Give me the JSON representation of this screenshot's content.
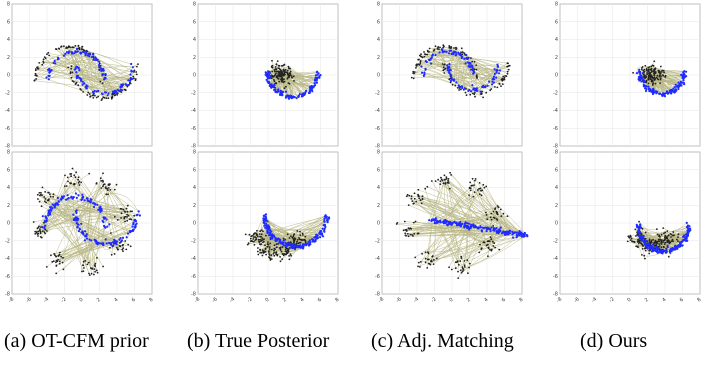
{
  "figure": {
    "captions": [
      {
        "label": "(a) OT-CFM prior"
      },
      {
        "label": "(b) True Posterior"
      },
      {
        "label": "(c) Adj. Matching"
      },
      {
        "label": "(d) Ours"
      }
    ]
  },
  "chart_data": [
    {
      "type": "scatter",
      "panel": "a-top",
      "xlim": [
        -8,
        8
      ],
      "ylim": [
        -8,
        8
      ],
      "grid": true,
      "xticks": [
        -8,
        -6,
        -4,
        -2,
        0,
        2,
        4,
        6,
        8
      ],
      "yticks": [
        -8,
        -6,
        -4,
        -2,
        0,
        2,
        4,
        6,
        8
      ],
      "series": [
        {
          "role": "source",
          "color": "#222222",
          "style": "moons",
          "values": [
            {
              "x_center": 0.5,
              "y_center": 0.3,
              "spread": 3.0
            }
          ]
        },
        {
          "role": "target",
          "color": "#1f2bff",
          "style": "two-moons",
          "values": [
            {
              "x_center": 1.0,
              "y_center": 0.25,
              "spread": 2.0
            }
          ]
        }
      ]
    },
    {
      "type": "scatter",
      "panel": "b-top",
      "xlim": [
        -8,
        8
      ],
      "ylim": [
        -8,
        8
      ],
      "grid": true,
      "xticks": [
        -8,
        -6,
        -4,
        -2,
        0,
        2,
        4,
        6,
        8
      ],
      "yticks": [
        -8,
        -6,
        -4,
        -2,
        0,
        2,
        4,
        6,
        8
      ],
      "series": [
        {
          "role": "source",
          "color": "#222222",
          "style": "blob",
          "values": [
            {
              "x_center": 1.5,
              "y_center": 0.0,
              "spread": 1.4
            }
          ]
        },
        {
          "role": "target",
          "color": "#1f2bff",
          "style": "lower-moon",
          "values": [
            {
              "x_center": 2.0,
              "y_center": -0.3,
              "spread": 1.8
            }
          ]
        }
      ]
    },
    {
      "type": "scatter",
      "panel": "c-top",
      "xlim": [
        -8,
        8
      ],
      "ylim": [
        -8,
        8
      ],
      "grid": true,
      "xticks": [
        -8,
        -6,
        -4,
        -2,
        0,
        2,
        4,
        6,
        8
      ],
      "yticks": [
        -8,
        -6,
        -4,
        -2,
        0,
        2,
        4,
        6,
        8
      ],
      "series": [
        {
          "role": "source",
          "color": "#222222",
          "style": "moons",
          "values": [
            {
              "x_center": 1.0,
              "y_center": 0.5,
              "spread": 2.8
            }
          ]
        },
        {
          "role": "target",
          "color": "#1f2bff",
          "style": "two-moons",
          "values": [
            {
              "x_center": 1.0,
              "y_center": 0.5,
              "spread": 1.8
            }
          ]
        }
      ]
    },
    {
      "type": "scatter",
      "panel": "d-top",
      "xlim": [
        -8,
        8
      ],
      "ylim": [
        -8,
        8
      ],
      "grid": true,
      "xticks": [
        -8,
        -6,
        -4,
        -2,
        0,
        2,
        4,
        6,
        8
      ],
      "yticks": [
        -8,
        -6,
        -4,
        -2,
        0,
        2,
        4,
        6,
        8
      ],
      "series": [
        {
          "role": "source",
          "color": "#222222",
          "style": "blob",
          "values": [
            {
              "x_center": 2.5,
              "y_center": 0.1,
              "spread": 1.4
            }
          ]
        },
        {
          "role": "target",
          "color": "#1f2bff",
          "style": "lower-moon",
          "values": [
            {
              "x_center": 3.0,
              "y_center": -0.2,
              "spread": 1.6
            }
          ]
        }
      ]
    },
    {
      "type": "scatter",
      "panel": "a-bottom",
      "xlim": [
        -8,
        8
      ],
      "ylim": [
        -8,
        8
      ],
      "grid": true,
      "xticks": [
        -8,
        -6,
        -4,
        -2,
        0,
        2,
        4,
        6,
        8
      ],
      "yticks": [
        -8,
        -6,
        -4,
        -2,
        0,
        2,
        4,
        6,
        8
      ],
      "series": [
        {
          "role": "source",
          "color": "#222222",
          "style": "8-gaussians",
          "values": [
            {
              "x_center": 0,
              "y_center": 0,
              "spread": 5.0
            }
          ]
        },
        {
          "role": "target",
          "color": "#1f2bff",
          "style": "two-moons",
          "values": [
            {
              "x_center": 1.0,
              "y_center": 0.3,
              "spread": 2.2
            }
          ]
        }
      ]
    },
    {
      "type": "scatter",
      "panel": "b-bottom",
      "xlim": [
        -8,
        8
      ],
      "ylim": [
        -8,
        8
      ],
      "grid": true,
      "xticks": [
        -8,
        -6,
        -4,
        -2,
        0,
        2,
        4,
        6,
        8
      ],
      "yticks": [
        -8,
        -6,
        -4,
        -2,
        0,
        2,
        4,
        6,
        8
      ],
      "series": [
        {
          "role": "source",
          "color": "#222222",
          "style": "lower-gaussians",
          "values": [
            {
              "x_center": 1.0,
              "y_center": -3.5,
              "spread": 4.0
            }
          ]
        },
        {
          "role": "target",
          "color": "#1f2bff",
          "style": "lower-moon",
          "values": [
            {
              "x_center": 2.0,
              "y_center": 0.0,
              "spread": 2.2
            }
          ]
        }
      ]
    },
    {
      "type": "scatter",
      "panel": "c-bottom",
      "xlim": [
        -8,
        8
      ],
      "ylim": [
        -8,
        8
      ],
      "grid": true,
      "xticks": [
        -8,
        -6,
        -4,
        -2,
        0,
        2,
        4,
        6,
        8
      ],
      "yticks": [
        -8,
        -6,
        -4,
        -2,
        0,
        2,
        4,
        6,
        8
      ],
      "series": [
        {
          "role": "source",
          "color": "#222222",
          "style": "8-gaussians",
          "values": [
            {
              "x_center": 0,
              "y_center": 0,
              "spread": 5.0
            }
          ]
        },
        {
          "role": "target",
          "color": "#1f2bff",
          "style": "diagonal-line",
          "values": [
            {
              "x_center": 3.0,
              "y_center": -0.5,
              "spread": 3.5
            }
          ]
        }
      ]
    },
    {
      "type": "scatter",
      "panel": "d-bottom",
      "xlim": [
        -8,
        8
      ],
      "ylim": [
        -8,
        8
      ],
      "grid": true,
      "xticks": [
        -8,
        -6,
        -4,
        -2,
        0,
        2,
        4,
        6,
        8
      ],
      "yticks": [
        -8,
        -6,
        -4,
        -2,
        0,
        2,
        4,
        6,
        8
      ],
      "series": [
        {
          "role": "source",
          "color": "#222222",
          "style": "lower-gaussians",
          "values": [
            {
              "x_center": 2.5,
              "y_center": -3.5,
              "spread": 3.0
            }
          ]
        },
        {
          "role": "target",
          "color": "#1f2bff",
          "style": "lower-moon",
          "values": [
            {
              "x_center": 3.0,
              "y_center": -1.0,
              "spread": 1.8
            }
          ]
        }
      ]
    }
  ],
  "colors": {
    "flow_line": "#7d7a1e",
    "source_point": "#222222",
    "target_point": "#1f2bff",
    "grid": "#e6e6e6",
    "axis": "#555555"
  }
}
